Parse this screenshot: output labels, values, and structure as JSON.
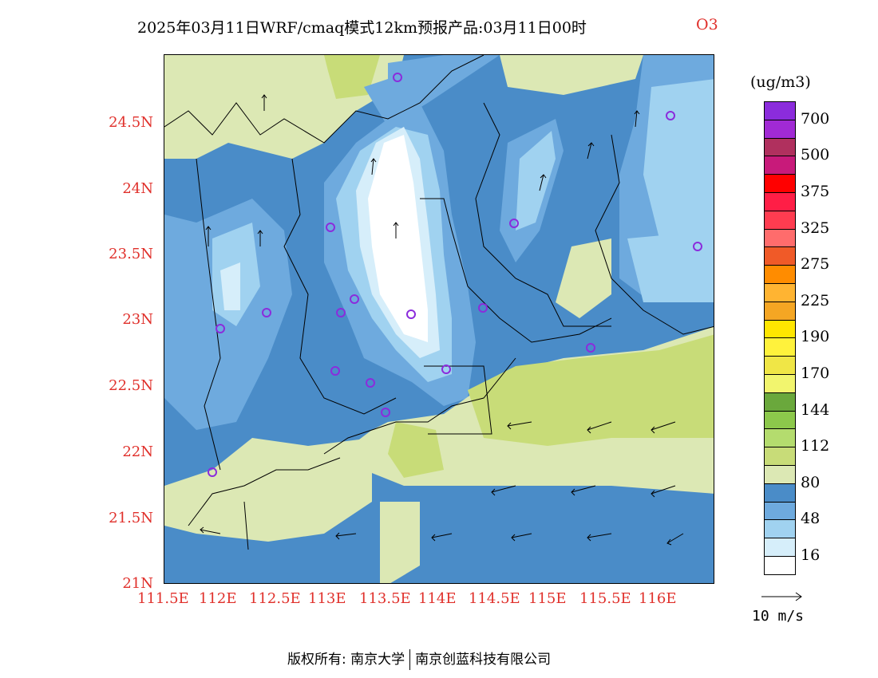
{
  "title": {
    "main": "2025年03月11日WRF/cmaq模式12km预报产品:03月11日00时",
    "species": "O3"
  },
  "axes": {
    "y_labels": [
      "24.5N",
      "24N",
      "23.5N",
      "23N",
      "22.5N",
      "22N",
      "21.5N",
      "21N"
    ],
    "x_labels": [
      "111.5E",
      "112E",
      "112.5E",
      "113E",
      "113.5E",
      "114E",
      "114.5E",
      "115E",
      "115.5E",
      "116E"
    ]
  },
  "legend": {
    "units": "(ug/m3)",
    "colors": [
      "#8b2cdc",
      "#a12ad4",
      "#b0305e",
      "#c81a7a",
      "#ff0000",
      "#ff1e46",
      "#ff3c50",
      "#ff6c6c",
      "#f05a28",
      "#ff8c00",
      "#ffb432",
      "#f5a623",
      "#ffe600",
      "#fff23c",
      "#f0e646",
      "#f2f56e",
      "#6aa83c",
      "#8cc84b",
      "#b4dc6e",
      "#c8dc78",
      "#dce8b4",
      "#4a8cc8",
      "#6eaade",
      "#a0d2f0",
      "#d6eefa",
      "#ffffff"
    ],
    "labels": [
      "700",
      "500",
      "375",
      "325",
      "275",
      "225",
      "190",
      "170",
      "144",
      "112",
      "80",
      "48",
      "16"
    ]
  },
  "wind_scale": "10 m/s",
  "footer": {
    "left": "版权所有: 南京大学",
    "right": "南京创蓝科技有限公司"
  }
}
